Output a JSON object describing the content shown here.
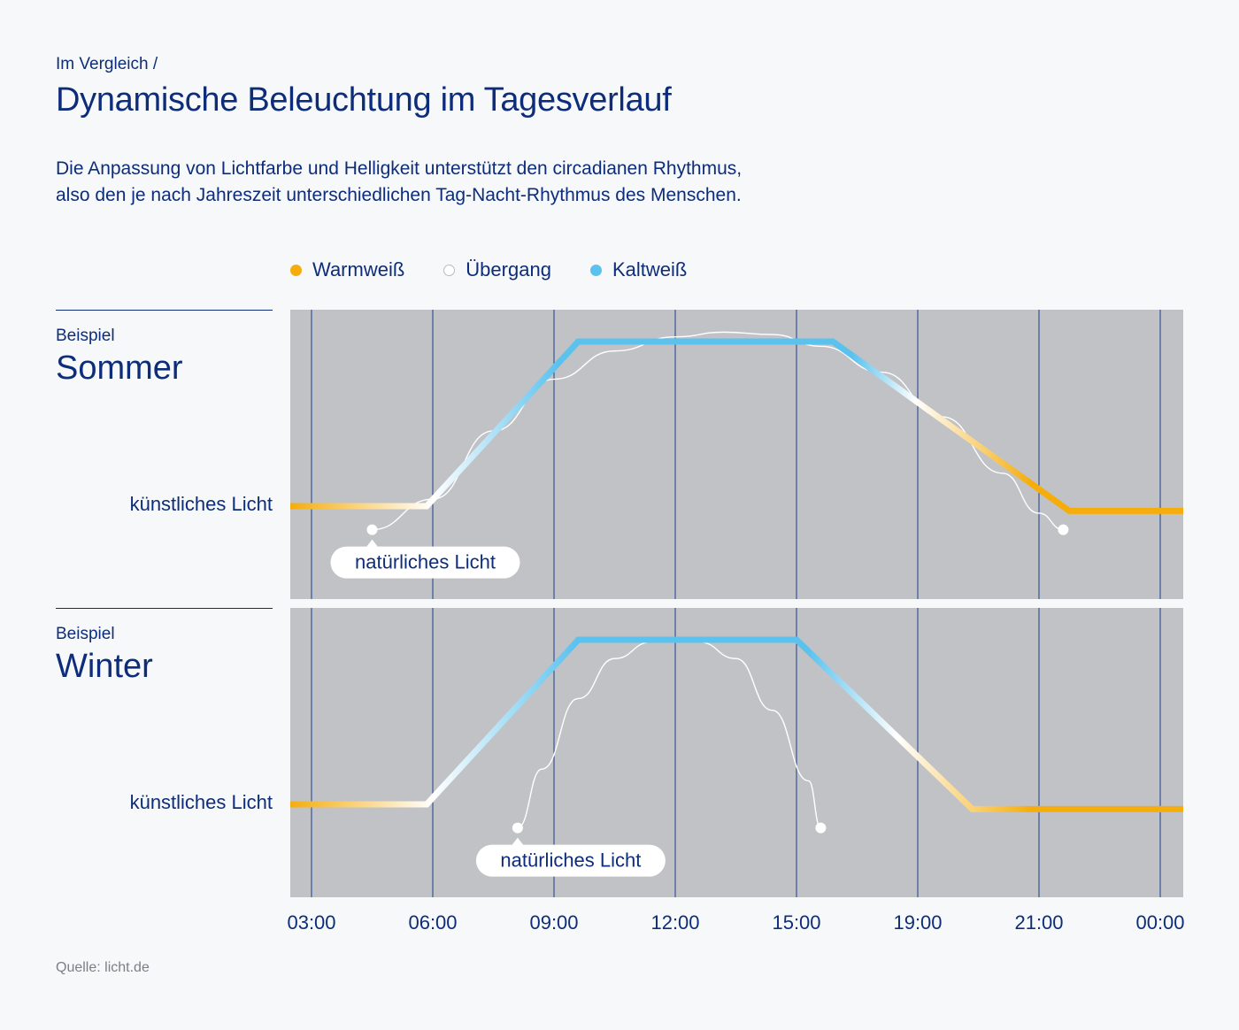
{
  "header": {
    "eyebrow": "Im Vergleich  /",
    "title": "Dynamische Beleuchtung im Tagesverlauf",
    "description_line1": "Die Anpassung von Lichtfarbe und Helligkeit unterstützt den circadianen Rhythmus,",
    "description_line2": "also den je nach Jahreszeit unterschiedlichen Tag-Nacht-Rhythmus des Menschen."
  },
  "legend": [
    {
      "label": "Warmweiß",
      "color": "#f5ad0d",
      "style": "filled"
    },
    {
      "label": "Übergang",
      "color": "#ffffff",
      "style": "outline"
    },
    {
      "label": "Kaltweiß",
      "color": "#5bc2ee",
      "style": "filled"
    }
  ],
  "colors": {
    "panel": "#c1c2c5",
    "gridline": "#1b3d8f",
    "warm": "#f5ad0d",
    "transition": "#ffffff",
    "cold": "#5bc2ee",
    "text": "#0d2d7a",
    "source": "#7a7f88"
  },
  "chart_data": {
    "type": "line",
    "x_tick_labels": [
      "03:00",
      "06:00",
      "09:00",
      "12:00",
      "15:00",
      "19:00",
      "21:00",
      "00:00"
    ],
    "panels": [
      {
        "kicker": "Beispiel",
        "title": "Sommer",
        "artificial_label": "künstliches Licht",
        "natural_label": "natürliches Licht",
        "artificial_light": [
          [
            -0.5,
            0.3
          ],
          [
            0.95,
            0.3
          ],
          [
            2.2,
            1.0
          ],
          [
            4.3,
            1.0
          ],
          [
            6.25,
            0.28
          ],
          [
            7.2,
            0.28
          ]
        ],
        "artificial_colors": [
          [
            0,
            "warm"
          ],
          [
            0.16,
            "transition"
          ],
          [
            0.3,
            "cold"
          ],
          [
            0.63,
            "cold"
          ],
          [
            0.7,
            "transition"
          ],
          [
            0.83,
            "warm"
          ]
        ],
        "natural_light": [
          [
            0.5,
            0.2
          ],
          [
            1.0,
            0.33
          ],
          [
            1.5,
            0.62
          ],
          [
            2.0,
            0.84
          ],
          [
            2.5,
            0.96
          ],
          [
            3.0,
            1.02
          ],
          [
            3.4,
            1.04
          ],
          [
            3.8,
            1.03
          ],
          [
            4.2,
            0.98
          ],
          [
            4.7,
            0.87
          ],
          [
            5.2,
            0.68
          ],
          [
            5.7,
            0.44
          ],
          [
            6.0,
            0.27
          ],
          [
            6.2,
            0.2
          ]
        ]
      },
      {
        "kicker": "Beispiel",
        "title": "Winter",
        "artificial_label": "künstliches Licht",
        "natural_label": "natürliches Licht",
        "artificial_light": [
          [
            -0.5,
            0.3
          ],
          [
            0.95,
            0.3
          ],
          [
            2.2,
            1.0
          ],
          [
            4.0,
            1.0
          ],
          [
            5.45,
            0.28
          ],
          [
            7.2,
            0.28
          ]
        ],
        "artificial_colors": [
          [
            0,
            "warm"
          ],
          [
            0.16,
            "transition"
          ],
          [
            0.32,
            "cold"
          ],
          [
            0.58,
            "cold"
          ],
          [
            0.68,
            "transition"
          ],
          [
            0.83,
            "warm"
          ]
        ],
        "natural_light": [
          [
            1.7,
            0.2
          ],
          [
            1.9,
            0.45
          ],
          [
            2.2,
            0.75
          ],
          [
            2.5,
            0.92
          ],
          [
            2.8,
            0.99
          ],
          [
            3.0,
            1.0
          ],
          [
            3.2,
            0.99
          ],
          [
            3.5,
            0.92
          ],
          [
            3.8,
            0.7
          ],
          [
            4.1,
            0.4
          ],
          [
            4.2,
            0.2
          ]
        ]
      }
    ]
  },
  "source": "Quelle: licht.de"
}
